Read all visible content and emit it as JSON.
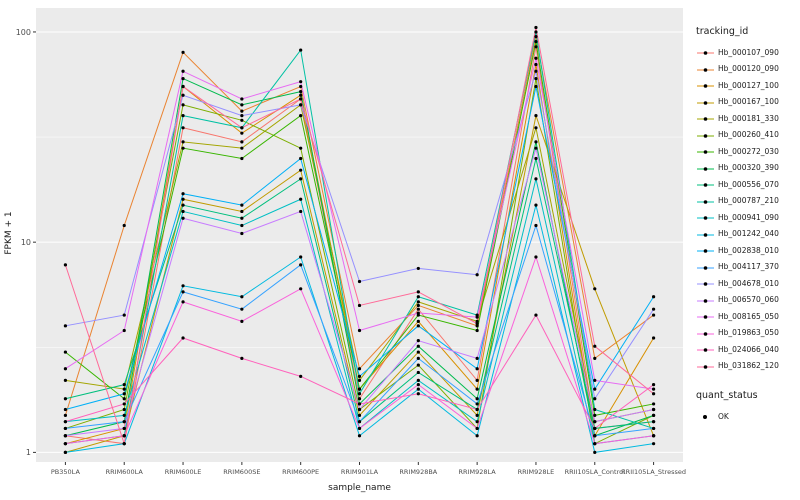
{
  "chart_data": {
    "type": "line",
    "title": "",
    "xlabel": "sample_name",
    "ylabel": "FPKM + 1",
    "y_scale": "log10",
    "y_ticks": [
      1,
      10,
      100
    ],
    "y_minor_ticks": [
      3.1623,
      31.623
    ],
    "ylim": [
      0.9,
      130
    ],
    "panel_bg": "#EBEBEB",
    "grid_color": "#FFFFFF",
    "tick_color": "#333333",
    "axis_text_color": "#4D4D4D",
    "point_color": "#000000",
    "legend": {
      "tracking_title": "tracking_id",
      "quant_title": "quant_status",
      "quant_label": "OK"
    },
    "x_categories": [
      "PB350LA",
      "RRIM600LA",
      "RRIM600LE",
      "RRIM600SE",
      "RRIM600PE",
      "RRIM901LA",
      "RRIM928BA",
      "RRIM928LA",
      "RRIM928LE",
      "RRII105LA_Control",
      "RRII105LA_Stressed"
    ],
    "series": [
      {
        "name": "Hb_000107_090",
        "color": "#F8766D",
        "values": [
          1.2,
          1.1,
          35,
          30,
          48,
          1.8,
          4.8,
          2.2,
          85,
          1.3,
          1.4
        ]
      },
      {
        "name": "Hb_000120_090",
        "color": "#EA8331",
        "values": [
          1.5,
          12,
          80,
          42,
          55,
          2.5,
          5.0,
          4.0,
          95,
          2.8,
          4.5
        ]
      },
      {
        "name": "Hb_000127_100",
        "color": "#D89000",
        "values": [
          1.1,
          1.3,
          55,
          33,
          50,
          2.0,
          4.2,
          2.0,
          70,
          1.2,
          3.5
        ]
      },
      {
        "name": "Hb_000167_100",
        "color": "#C09B00",
        "values": [
          1.0,
          1.2,
          16,
          14,
          22,
          1.5,
          3.0,
          1.5,
          40,
          6.0,
          1.2
        ]
      },
      {
        "name": "Hb_000181_330",
        "color": "#A3A500",
        "values": [
          2.2,
          2.0,
          30,
          28,
          45,
          2.2,
          5.2,
          4.2,
          35,
          1.4,
          1.6
        ]
      },
      {
        "name": "Hb_000260_410",
        "color": "#7CAE00",
        "values": [
          1.3,
          1.6,
          45,
          38,
          28,
          1.6,
          2.6,
          1.3,
          60,
          1.1,
          1.5
        ]
      },
      {
        "name": "Hb_000272_030",
        "color": "#39B600",
        "values": [
          3.0,
          1.8,
          28,
          25,
          40,
          2.0,
          4.5,
          3.8,
          90,
          1.5,
          1.7
        ]
      },
      {
        "name": "Hb_000320_390",
        "color": "#00BB4E",
        "values": [
          1.2,
          1.4,
          60,
          45,
          52,
          1.7,
          3.2,
          1.8,
          30,
          1.2,
          1.5
        ]
      },
      {
        "name": "Hb_000556_070",
        "color": "#00BF7D",
        "values": [
          1.8,
          2.1,
          15,
          13,
          20,
          1.4,
          2.4,
          1.6,
          25,
          1.3,
          1.4
        ]
      },
      {
        "name": "Hb_000787_210",
        "color": "#00C1A3",
        "values": [
          1.1,
          1.2,
          40,
          35,
          82,
          1.9,
          5.5,
          4.5,
          100,
          1.6,
          1.3
        ]
      },
      {
        "name": "Hb_000941_090",
        "color": "#00BFC4",
        "values": [
          1.4,
          1.5,
          14,
          12,
          16,
          1.3,
          2.2,
          1.4,
          20,
          1.1,
          1.2
        ]
      },
      {
        "name": "Hb_001242_040",
        "color": "#00BAE0",
        "values": [
          1.0,
          1.1,
          6.2,
          5.5,
          8.5,
          1.2,
          2.0,
          1.2,
          15,
          1.0,
          1.1
        ]
      },
      {
        "name": "Hb_002838_010",
        "color": "#00B0F6",
        "values": [
          1.6,
          1.9,
          17,
          15,
          25,
          2.3,
          4.0,
          2.5,
          55,
          2.0,
          5.5
        ]
      },
      {
        "name": "Hb_004117_370",
        "color": "#35A2FF",
        "values": [
          1.3,
          1.4,
          5.8,
          4.8,
          7.8,
          1.4,
          2.8,
          1.7,
          12,
          1.2,
          1.3
        ]
      },
      {
        "name": "Hb_004678_010",
        "color": "#9590FF",
        "values": [
          4.0,
          4.5,
          50,
          40,
          45,
          6.5,
          7.5,
          7.0,
          65,
          1.8,
          4.8
        ]
      },
      {
        "name": "Hb_006570_060",
        "color": "#C77CFF",
        "values": [
          1.2,
          1.3,
          13,
          11,
          14,
          1.6,
          3.4,
          2.8,
          28,
          1.4,
          1.6
        ]
      },
      {
        "name": "Hb_008165_050",
        "color": "#E76BF3",
        "values": [
          2.5,
          3.8,
          65,
          48,
          58,
          3.8,
          4.6,
          4.4,
          75,
          2.2,
          2.0
        ]
      },
      {
        "name": "Hb_019863_050",
        "color": "#FA62DB",
        "values": [
          1.1,
          1.2,
          5.2,
          4.2,
          6.0,
          1.3,
          2.1,
          1.3,
          8.5,
          1.1,
          1.2
        ]
      },
      {
        "name": "Hb_024066_040",
        "color": "#FF62BC",
        "values": [
          1.4,
          1.7,
          3.5,
          2.8,
          2.3,
          1.7,
          1.9,
          1.6,
          4.5,
          1.3,
          2.1
        ]
      },
      {
        "name": "Hb_031862_120",
        "color": "#FF6A98",
        "values": [
          7.8,
          1.1,
          55,
          35,
          48,
          5.0,
          5.8,
          4.1,
          105,
          3.2,
          1.9
        ]
      }
    ]
  }
}
